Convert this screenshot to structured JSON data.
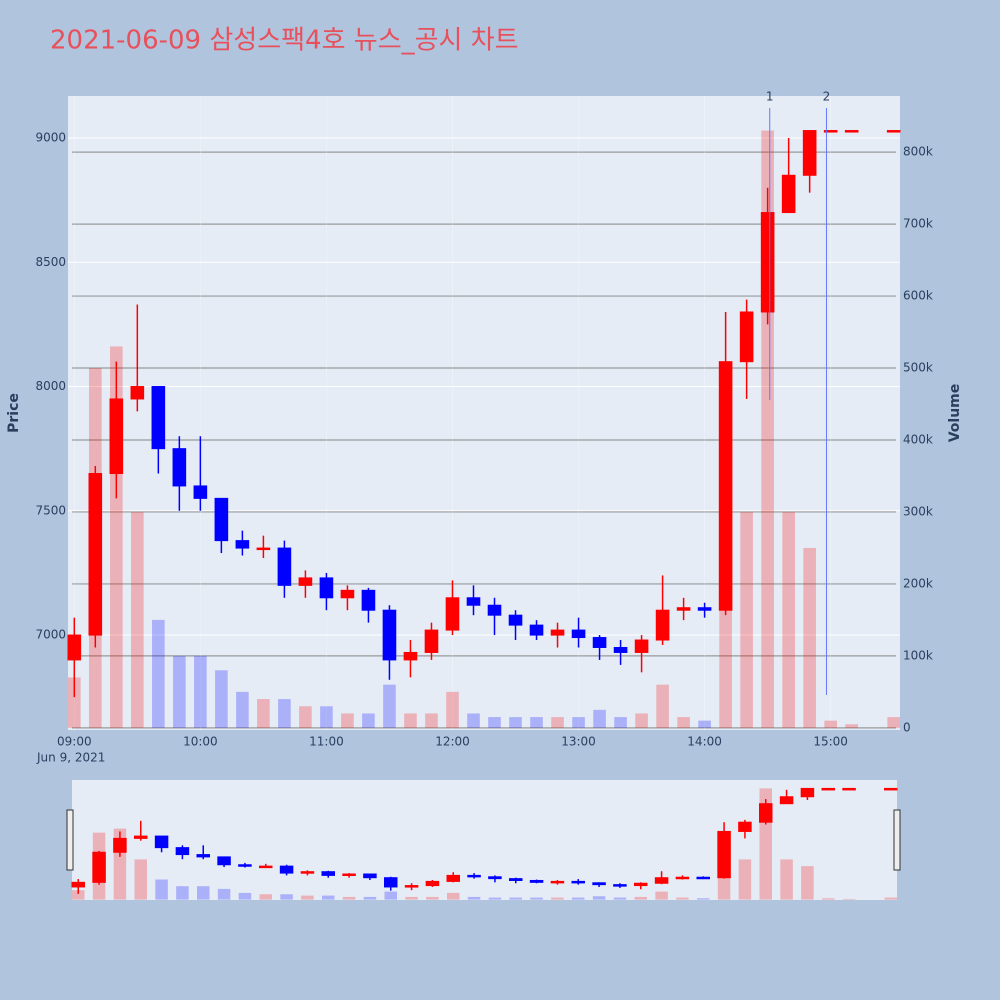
{
  "chart_data": {
    "type": "candlestick",
    "title": "2021-06-09 삼성스팩4호 뉴스_공시 차트",
    "x_date_label": "Jun 9, 2021",
    "y_label": "Price",
    "y2_label": "Volume",
    "x": [
      "09:00",
      "09:10",
      "09:20",
      "09:30",
      "09:40",
      "09:50",
      "10:00",
      "10:10",
      "10:20",
      "10:30",
      "10:40",
      "10:50",
      "11:00",
      "11:10",
      "11:20",
      "11:30",
      "11:40",
      "11:50",
      "12:00",
      "12:10",
      "12:20",
      "12:30",
      "12:40",
      "12:50",
      "13:00",
      "13:10",
      "13:20",
      "13:30",
      "13:40",
      "13:50",
      "14:00",
      "14:10",
      "14:20",
      "14:30",
      "14:40",
      "14:50",
      "15:00",
      "15:10",
      "15:30"
    ],
    "open": [
      6900,
      7000,
      7650,
      7950,
      8000,
      7750,
      7600,
      7550,
      7380,
      7350,
      7350,
      7200,
      7230,
      7150,
      7180,
      7100,
      6900,
      6930,
      7020,
      7150,
      7120,
      7080,
      7040,
      7000,
      7020,
      6990,
      6950,
      6930,
      6980,
      7100,
      7110,
      7100,
      8100,
      8300,
      8700,
      8850,
      9030,
      9030,
      9030
    ],
    "high": [
      7070,
      7680,
      8100,
      8330,
      8000,
      7800,
      7800,
      7550,
      7420,
      7400,
      7380,
      7260,
      7250,
      7200,
      7190,
      7120,
      6980,
      7050,
      7220,
      7200,
      7150,
      7100,
      7060,
      7050,
      7070,
      7000,
      6980,
      7000,
      7240,
      7150,
      7130,
      8300,
      8350,
      8800,
      9000,
      9030,
      9030,
      9030,
      9030
    ],
    "low": [
      6750,
      6950,
      7550,
      7900,
      7650,
      7500,
      7500,
      7330,
      7320,
      7310,
      7150,
      7150,
      7100,
      7100,
      7050,
      6820,
      6830,
      6900,
      7000,
      7080,
      7000,
      6980,
      6980,
      6950,
      6950,
      6900,
      6880,
      6850,
      6960,
      7060,
      7070,
      7080,
      7950,
      8250,
      8720,
      8780,
      9030,
      9030,
      9030
    ],
    "close": [
      7000,
      7650,
      7950,
      8000,
      7750,
      7600,
      7550,
      7380,
      7350,
      7350,
      7200,
      7230,
      7150,
      7180,
      7100,
      6900,
      6930,
      7020,
      7150,
      7120,
      7080,
      7040,
      7000,
      7020,
      6990,
      6950,
      6930,
      6980,
      7100,
      7110,
      7100,
      8100,
      8300,
      8700,
      8850,
      9030,
      9030,
      9030,
      9030
    ],
    "volume": [
      70000,
      500000,
      530000,
      300000,
      150000,
      100000,
      100000,
      80000,
      50000,
      40000,
      40000,
      30000,
      30000,
      20000,
      20000,
      60000,
      20000,
      20000,
      50000,
      20000,
      15000,
      15000,
      15000,
      15000,
      15000,
      25000,
      15000,
      20000,
      60000,
      15000,
      10000,
      350000,
      300000,
      830000,
      300000,
      250000,
      10000,
      5000,
      15000
    ],
    "increasing_color": "#ff0000",
    "decreasing_color": "#0000ff",
    "xlim": [
      "08:57",
      "15:33"
    ],
    "xticks": [
      "09:00",
      "10:00",
      "11:00",
      "12:00",
      "13:00",
      "14:00",
      "15:00"
    ],
    "ylim": [
      6618,
      9169
    ],
    "yticks": [
      7000,
      7500,
      8000,
      8500,
      9000
    ],
    "y2lim": [
      -3000,
      878000
    ],
    "y2ticks": [
      0,
      {
        "value": 100000,
        "label": "100k"
      },
      {
        "value": 200000,
        "label": "200k"
      },
      {
        "value": 300000,
        "label": "300k"
      },
      {
        "value": 400000,
        "label": "400k"
      },
      {
        "value": 500000,
        "label": "500k"
      },
      {
        "value": 600000,
        "label": "600k"
      },
      {
        "value": 700000,
        "label": "700k"
      },
      {
        "value": 800000,
        "label": "800k"
      }
    ],
    "annotations": [
      {
        "x": "14:31",
        "text": "1"
      },
      {
        "x": "14:58",
        "text": "2"
      }
    ],
    "grid": true,
    "rangeslider": true
  }
}
